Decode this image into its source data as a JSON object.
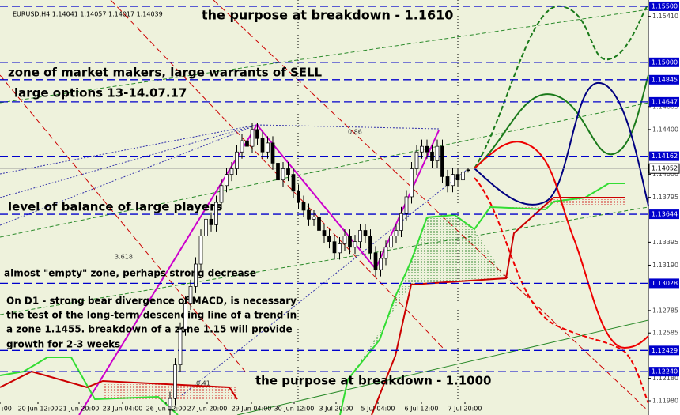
{
  "chart_data": {
    "type": "candlestick",
    "header": "EURUSD,H4  1.14041 1.14057 1.14017 1.14039",
    "annotations": [
      "the purpose at breakdown - 1.1610",
      "zone of market makers, large warrants of SELL",
      "large options 13-14.07.17",
      "level of balance of large players",
      "almost \"empty\" zone, perhaps strong decrease",
      "On D1 - strong bear divergence of MACD, is necessary",
      "the test of the long-term descending line of a trend in",
      "a zone 1.1455. breakdown of a zone 1.15 will provide",
      "growth for 2-3 weeks",
      "the purpose at breakdown - 1.1000"
    ],
    "fibo_labels": [
      "0.86",
      "3.618",
      "0.41"
    ],
    "categories": [
      ":00",
      "20 Jun 12:00",
      "21 Jun 20:00",
      "23 Jun 04:00",
      "26 Jun 12:00",
      "27 Jun 20:00",
      "29 Jun 04:00",
      "30 Jun 12:00",
      "3 Jul 20:00",
      "5 Jul 04:00",
      "6 Jul 12:00",
      "7 Jul 20:00"
    ],
    "ylim": [
      1.11853,
      1.15556
    ],
    "yticks": [
      {
        "value": 1.1541,
        "label": "1.15410"
      },
      {
        "value": 1.14605,
        "label": "1.14605"
      },
      {
        "value": 1.144,
        "label": "1.14400"
      },
      {
        "value": 1.14,
        "label": "1.14000"
      },
      {
        "value": 1.13795,
        "label": "1.13795"
      },
      {
        "value": 1.13395,
        "label": "1.13395"
      },
      {
        "value": 1.1319,
        "label": "1.13190"
      },
      {
        "value": 1.12785,
        "label": "1.12785"
      },
      {
        "value": 1.12585,
        "label": "1.12585"
      },
      {
        "value": 1.1218,
        "label": "1.12180"
      },
      {
        "value": 1.1198,
        "label": "1.11980"
      }
    ],
    "levels": [
      {
        "value": 1.155,
        "label": "1.15500"
      },
      {
        "value": 1.15,
        "label": "1.15000"
      },
      {
        "value": 1.14845,
        "label": "1.14845"
      },
      {
        "value": 1.14647,
        "label": "1.14647"
      },
      {
        "value": 1.14162,
        "label": "1.14162"
      },
      {
        "value": 1.13644,
        "label": "1.13644"
      },
      {
        "value": 1.13028,
        "label": "1.13028"
      },
      {
        "value": 1.12429,
        "label": "1.12429"
      },
      {
        "value": 1.1224,
        "label": "1.12240"
      }
    ],
    "level_color": "#0000cc",
    "current_price": {
      "value": 1.14052,
      "label": "1.14052"
    },
    "candles": [
      [
        1.119,
        1.1206,
        1.1184,
        1.12
      ],
      [
        1.12,
        1.1236,
        1.1194,
        1.123
      ],
      [
        1.123,
        1.1268,
        1.1224,
        1.1262
      ],
      [
        1.1262,
        1.1291,
        1.1256,
        1.1285
      ],
      [
        1.1285,
        1.1306,
        1.1279,
        1.13
      ],
      [
        1.13,
        1.1326,
        1.1294,
        1.132
      ],
      [
        1.132,
        1.1351,
        1.1314,
        1.1345
      ],
      [
        1.1345,
        1.1366,
        1.1339,
        1.136
      ],
      [
        1.136,
        1.1366,
        1.1349,
        1.1355
      ],
      [
        1.1355,
        1.1381,
        1.1349,
        1.1375
      ],
      [
        1.1375,
        1.1396,
        1.1369,
        1.139
      ],
      [
        1.139,
        1.1406,
        1.1384,
        1.14
      ],
      [
        1.14,
        1.1411,
        1.1394,
        1.1405
      ],
      [
        1.1405,
        1.1426,
        1.1399,
        1.142
      ],
      [
        1.142,
        1.1436,
        1.1414,
        1.143
      ],
      [
        1.143,
        1.1436,
        1.1419,
        1.1425
      ],
      [
        1.1425,
        1.1446,
        1.1419,
        1.144
      ],
      [
        1.144,
        1.1446,
        1.1426,
        1.1432
      ],
      [
        1.1432,
        1.1438,
        1.1414,
        1.142
      ],
      [
        1.142,
        1.1434,
        1.1414,
        1.1428
      ],
      [
        1.1428,
        1.1434,
        1.1404,
        1.141
      ],
      [
        1.141,
        1.1416,
        1.1389,
        1.1395
      ],
      [
        1.1395,
        1.1411,
        1.1389,
        1.1405
      ],
      [
        1.1405,
        1.1411,
        1.1394,
        1.14
      ],
      [
        1.14,
        1.1406,
        1.1379,
        1.1385
      ],
      [
        1.1385,
        1.1391,
        1.1369,
        1.1375
      ],
      [
        1.1375,
        1.1381,
        1.1362,
        1.1368
      ],
      [
        1.1368,
        1.1374,
        1.1354,
        1.136
      ],
      [
        1.136,
        1.1368,
        1.1354,
        1.1362
      ],
      [
        1.1362,
        1.1368,
        1.1344,
        1.135
      ],
      [
        1.135,
        1.1356,
        1.1339,
        1.1345
      ],
      [
        1.1345,
        1.1351,
        1.1334,
        1.134
      ],
      [
        1.134,
        1.1346,
        1.1324,
        1.133
      ],
      [
        1.133,
        1.1344,
        1.1324,
        1.1338
      ],
      [
        1.1338,
        1.1351,
        1.1332,
        1.1345
      ],
      [
        1.1345,
        1.1351,
        1.1329,
        1.1335
      ],
      [
        1.1335,
        1.1346,
        1.1329,
        1.134
      ],
      [
        1.134,
        1.1356,
        1.1334,
        1.135
      ],
      [
        1.135,
        1.1356,
        1.1339,
        1.1345
      ],
      [
        1.1345,
        1.1351,
        1.1324,
        1.133
      ],
      [
        1.133,
        1.1336,
        1.1309,
        1.1315
      ],
      [
        1.1315,
        1.1331,
        1.1309,
        1.1325
      ],
      [
        1.1325,
        1.1341,
        1.1319,
        1.1335
      ],
      [
        1.1335,
        1.1351,
        1.1329,
        1.1345
      ],
      [
        1.1345,
        1.1356,
        1.1339,
        1.135
      ],
      [
        1.135,
        1.1371,
        1.1344,
        1.1365
      ],
      [
        1.1365,
        1.1386,
        1.1359,
        1.138
      ],
      [
        1.138,
        1.1411,
        1.1374,
        1.1405
      ],
      [
        1.1405,
        1.1426,
        1.1399,
        1.142
      ],
      [
        1.142,
        1.1431,
        1.1414,
        1.1425
      ],
      [
        1.1425,
        1.1431,
        1.1414,
        1.142
      ],
      [
        1.142,
        1.1426,
        1.1406,
        1.1412
      ],
      [
        1.1412,
        1.1431,
        1.1406,
        1.1425
      ],
      [
        1.1425,
        1.1431,
        1.1392,
        1.1398
      ],
      [
        1.1398,
        1.1404,
        1.1384,
        1.139
      ],
      [
        1.139,
        1.1406,
        1.1384,
        1.14
      ],
      [
        1.14,
        1.1406,
        1.1389,
        1.1395
      ],
      [
        1.1395,
        1.1408,
        1.1389,
        1.1402
      ],
      [
        1.14041,
        1.14057,
        1.14017,
        1.14039
      ]
    ],
    "bull_color": "#ffffff",
    "bear_color": "#000000"
  }
}
